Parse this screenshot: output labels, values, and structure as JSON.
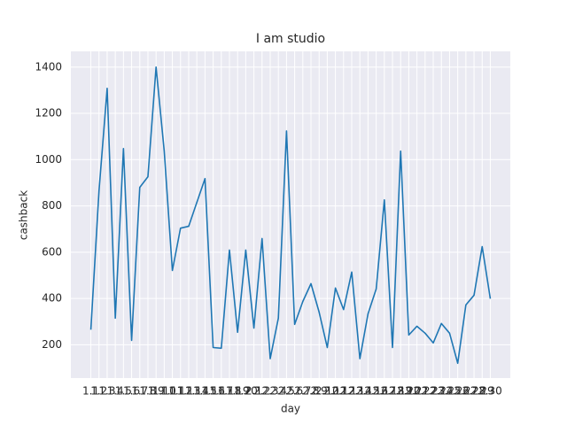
{
  "chart_data": {
    "type": "line",
    "title": "I am studio",
    "x_label": "day",
    "y_label": "cashback",
    "categories": [
      "1.1",
      "1.2",
      "1.3",
      "1.4",
      "1.5",
      "1.6",
      "1.7",
      "1.8",
      "1.9",
      "1.10",
      "1.11",
      "1.12",
      "1.13",
      "1.14",
      "1.15",
      "1.16",
      "1.17",
      "1.18",
      "1.19",
      "1.20",
      "2.1",
      "2.2",
      "2.3",
      "2.4",
      "2.5",
      "2.6",
      "2.7",
      "2.8",
      "2.9",
      "2.10",
      "2.11",
      "2.12",
      "2.13",
      "2.14",
      "2.15",
      "2.16",
      "2.17",
      "2.18",
      "2.19",
      "2.20",
      "2.21",
      "2.22",
      "2.23",
      "2.24",
      "2.25",
      "2.26",
      "2.27",
      "2.28",
      "2.29",
      "2.30"
    ],
    "series": [
      {
        "name": "cashback",
        "color": "#1f77b4",
        "values": [
          265,
          865,
          1308,
          315,
          1048,
          219,
          880,
          926,
          1400,
          1037,
          521,
          704,
          712,
          815,
          918,
          188,
          185,
          609,
          254,
          609,
          272,
          659,
          140,
          315,
          1124,
          288,
          387,
          464,
          341,
          188,
          445,
          352,
          514,
          140,
          334,
          441,
          826,
          188,
          1037,
          242,
          280,
          250,
          208,
          292,
          250,
          120,
          372,
          414,
          624,
          399
        ]
      }
    ],
    "ylim": [
      56,
      1468
    ],
    "yticks": [
      200,
      400,
      600,
      800,
      1000,
      1200,
      1400
    ],
    "grid": true
  }
}
